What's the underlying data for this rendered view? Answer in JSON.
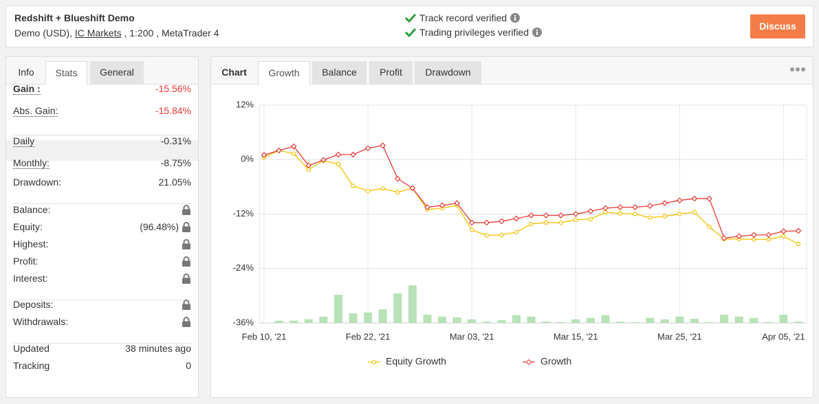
{
  "header": {
    "title": "Redshift + Blueshift Demo",
    "subtitle_prefix": "Demo (USD), ",
    "broker": "IC Markets",
    "subtitle_suffix": " , 1:200 , MetaTrader 4",
    "verifications": [
      "Track record verified",
      "Trading privileges verified"
    ],
    "button": "Discuss"
  },
  "stats_panel": {
    "tabs": [
      "Info",
      "Stats",
      "General"
    ],
    "groups": [
      [
        {
          "label": "Gain :",
          "value": "-15.56%"
        },
        {
          "label": "Abs. Gain:",
          "value": "-15.84%"
        }
      ],
      [
        {
          "label": "Daily",
          "value": "-0.31%"
        },
        {
          "label": "Monthly:",
          "value": "-8.75%"
        },
        {
          "label": "Drawdown:",
          "value": "21.05%"
        }
      ],
      [
        {
          "label": "Balance:"
        },
        {
          "label": "Equity:",
          "value": "(96.48%)"
        },
        {
          "label": "Highest:"
        },
        {
          "label": "Profit:"
        },
        {
          "label": "Interest:"
        }
      ],
      [
        {
          "label": "Deposits:"
        },
        {
          "label": "Withdrawals:"
        }
      ],
      [
        {
          "label": "Updated",
          "value": "38 minutes ago"
        },
        {
          "label": "Tracking",
          "value": "0"
        }
      ]
    ]
  },
  "chart_panel": {
    "label": "Chart",
    "tabs": [
      "Growth",
      "Balance",
      "Profit",
      "Drawdown"
    ]
  },
  "chart_data": {
    "type": "line",
    "categories": [
      "Feb 10, '21",
      null,
      null,
      null,
      null,
      null,
      null,
      "Feb 22, '21",
      null,
      null,
      null,
      null,
      null,
      null,
      "Mar 03, '21",
      null,
      null,
      null,
      null,
      null,
      null,
      "Mar 15, '21",
      null,
      null,
      null,
      null,
      null,
      null,
      "Mar 25, '21",
      null,
      null,
      null,
      null,
      null,
      null,
      "Apr 05, '21",
      null
    ],
    "series": [
      {
        "name": "Equity Growth",
        "color": "#f2c200",
        "values": [
          0.5,
          2.0,
          1.3,
          -2.2,
          -0.2,
          -1.0,
          -5.8,
          -6.9,
          -6.4,
          -7.2,
          -6.3,
          -11.0,
          -10.7,
          -10.1,
          -15.5,
          -16.7,
          -16.6,
          -16.0,
          -14.2,
          -13.9,
          -13.9,
          -13.3,
          -13.1,
          -11.6,
          -11.9,
          -12.0,
          -12.8,
          -12.5,
          -12.0,
          -11.6,
          -14.8,
          -17.5,
          -17.5,
          -17.6,
          -17.6,
          -16.9,
          -18.6
        ]
      },
      {
        "name": "Growth",
        "color": "#e53935",
        "values": [
          1.0,
          2.0,
          2.9,
          -1.3,
          -0.1,
          1.1,
          1.1,
          2.5,
          3.1,
          -4.2,
          -6.3,
          -10.5,
          -10.1,
          -9.6,
          -13.9,
          -13.9,
          -13.6,
          -13.0,
          -12.3,
          -12.3,
          -12.3,
          -12.0,
          -11.4,
          -10.7,
          -10.5,
          -10.5,
          -10.2,
          -9.6,
          -9.0,
          -8.6,
          -8.6,
          -17.3,
          -16.9,
          -16.6,
          -16.6,
          -15.8,
          -15.7
        ]
      }
    ],
    "bars": {
      "color": "#b7e2b7",
      "values": [
        null,
        0.5,
        0.5,
        0.8,
        1.4,
        6.2,
        2.1,
        2.3,
        3.0,
        6.5,
        8.3,
        1.8,
        1.4,
        1.2,
        0.8,
        0.3,
        0.6,
        1.7,
        1.4,
        0.3,
        0.2,
        0.8,
        1.1,
        1.7,
        0.3,
        0.2,
        1.1,
        0.8,
        1.4,
        0.9,
        0.2,
        1.8,
        1.4,
        1.1,
        0.2,
        1.8,
        0.3
      ]
    },
    "ylim": [
      -36,
      12
    ],
    "yticks": [
      {
        "value": -36,
        "label": "-36%"
      },
      {
        "value": -24,
        "label": "-24%"
      },
      {
        "value": -12,
        "label": "-12%"
      },
      {
        "value": 0,
        "label": "0%"
      },
      {
        "value": 12,
        "label": "12%"
      }
    ],
    "grid": true,
    "legend": "bottom"
  }
}
